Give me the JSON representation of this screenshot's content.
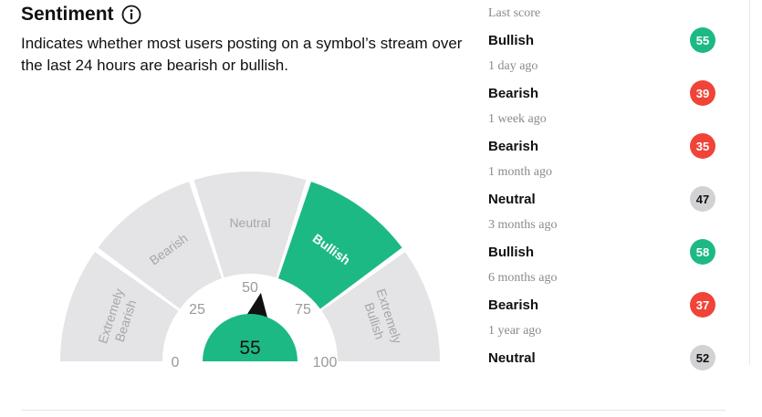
{
  "header": {
    "title": "Sentiment",
    "description": "Indicates whether most users posting on a symbol’s stream over the last 24 hours are bearish or bullish."
  },
  "gauge": {
    "value": 55,
    "segments": [
      {
        "label": "Extremely Bearish",
        "active": false
      },
      {
        "label": "Bearish",
        "active": false
      },
      {
        "label": "Neutral",
        "active": false
      },
      {
        "label": "Bullish",
        "active": true
      },
      {
        "label": "Extremely Bullish",
        "active": false
      }
    ],
    "ticks": [
      "0",
      "25",
      "50",
      "75",
      "100"
    ],
    "colors": {
      "active": "#1db985",
      "inactive": "#e4e4e6",
      "label": "#a6a6a6",
      "active_label": "#ffffff"
    }
  },
  "history": [
    {
      "when": "Last score",
      "label": "Bullish",
      "score": "55",
      "color": "#1db985"
    },
    {
      "when": "1 day ago",
      "label": "Bearish",
      "score": "39",
      "color": "#f04438"
    },
    {
      "when": "1 week ago",
      "label": "Bearish",
      "score": "35",
      "color": "#f04438"
    },
    {
      "when": "1 month ago",
      "label": "Neutral",
      "score": "47",
      "color": "#d2d2d4"
    },
    {
      "when": "3 months ago",
      "label": "Bullish",
      "score": "58",
      "color": "#1db985"
    },
    {
      "when": "6 months ago",
      "label": "Bearish",
      "score": "37",
      "color": "#f04438"
    },
    {
      "when": "1 year ago",
      "label": "Neutral",
      "score": "52",
      "color": "#d2d2d4"
    }
  ]
}
